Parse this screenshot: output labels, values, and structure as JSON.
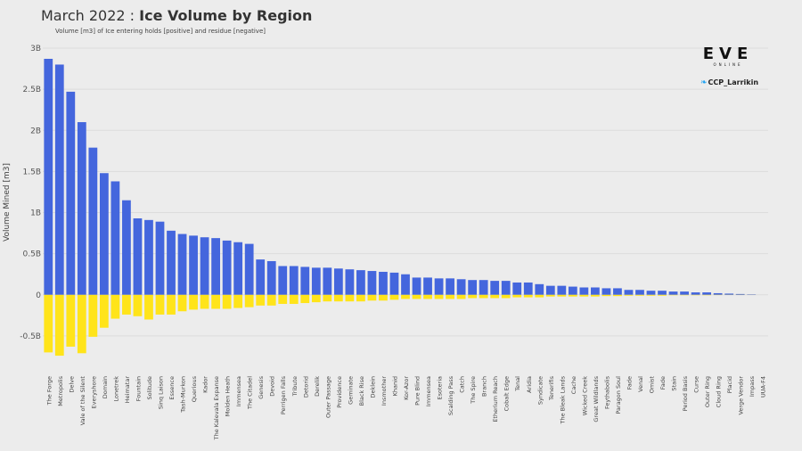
{
  "chart_data": {
    "type": "bar",
    "title_prefix": "March 2022 : ",
    "title_bold": "Ice Volume by Region",
    "subtitle": "Volume [m3] of Ice entering holds [positive] and residue [negative]",
    "xlabel": "",
    "ylabel": "Volume Mined [m3]",
    "ylim": [
      -750000000.0,
      3000000000.0
    ],
    "yticks": [
      3000000000.0,
      2500000000.0,
      2000000000.0,
      1500000000.0,
      1000000000.0,
      500000000.0,
      0,
      -500000000.0
    ],
    "ytick_labels": [
      "3B",
      "2.5B",
      "2B",
      "1.5B",
      "1B",
      "0.5B",
      "0",
      "-0.5B"
    ],
    "grid": true,
    "colors": {
      "positive": "#4466dd",
      "negative": "#ffe41a",
      "grid": "#dcdcdc",
      "background": "#ececec"
    },
    "categories": [
      "The Forge",
      "Metropolis",
      "Delve",
      "Vale of the Silent",
      "Everyshore",
      "Domain",
      "Lonetrek",
      "Heimatar",
      "Fountain",
      "Solitude",
      "Sinq Laison",
      "Essence",
      "Tash-Murkon",
      "Querious",
      "Kador",
      "The Kalevala Expanse",
      "Molden Heath",
      "Immensea",
      "The Citadel",
      "Genesis",
      "Devoid",
      "Perrigen Falls",
      "Tribute",
      "Detorid",
      "Derelik",
      "Outer Passage",
      "Providence",
      "Geminate",
      "Black Rise",
      "Deklein",
      "Insmother",
      "Khanid",
      "Kor-Azor",
      "Pure Blind",
      "Immensea",
      "Esoteria",
      "Scalding Pass",
      "Catch",
      "The Spire",
      "Branch",
      "Etherium Reach",
      "Cobalt Edge",
      "Tenal",
      "Aridia",
      "Syndicate",
      "Tenerifis",
      "The Bleak Lands",
      "Cache",
      "Wicked Creek",
      "Great Wildlands",
      "Feythabolis",
      "Paragon Soul",
      "Fade",
      "Venal",
      "Omist",
      "Fade",
      "Stain",
      "Period Basis",
      "Curse",
      "Outer Ring",
      "Cloud Ring",
      "Placid",
      "Verge Vendor",
      "Impass",
      "UUA-F4"
    ],
    "series": [
      {
        "name": "",
        "values": [
          2870000000.0,
          2800000000.0,
          2470000000.0,
          2100000000.0,
          1790000000.0,
          1480000000.0,
          1380000000.0,
          1150000000.0,
          930000000.0,
          910000000.0,
          890000000.0,
          780000000.0,
          740000000.0,
          720000000.0,
          700000000.0,
          690000000.0,
          660000000.0,
          640000000.0,
          620000000.0,
          430000000.0,
          410000000.0,
          350000000.0,
          350000000.0,
          340000000.0,
          330000000.0,
          330000000.0,
          320000000.0,
          310000000.0,
          300000000.0,
          290000000.0,
          280000000.0,
          270000000.0,
          250000000.0,
          210000000.0,
          210000000.0,
          200000000.0,
          200000000.0,
          190000000.0,
          180000000.0,
          180000000.0,
          170000000.0,
          170000000.0,
          150000000.0,
          150000000.0,
          130000000.0,
          110000000.0,
          110000000.0,
          100000000.0,
          90000000.0,
          90000000.0,
          80000000.0,
          80000000.0,
          60000000.0,
          60000000.0,
          50000000.0,
          50000000.0,
          40000000.0,
          40000000.0,
          30000000.0,
          30000000.0,
          20000000.0,
          15000000.0,
          10000000.0,
          5000000.0,
          0.0
        ]
      },
      {
        "name": "",
        "values": [
          -700000000.0,
          -740000000.0,
          -630000000.0,
          -710000000.0,
          -510000000.0,
          -400000000.0,
          -290000000.0,
          -240000000.0,
          -260000000.0,
          -300000000.0,
          -240000000.0,
          -240000000.0,
          -200000000.0,
          -180000000.0,
          -170000000.0,
          -170000000.0,
          -170000000.0,
          -160000000.0,
          -150000000.0,
          -130000000.0,
          -130000000.0,
          -110000000.0,
          -110000000.0,
          -100000000.0,
          -90000000.0,
          -80000000.0,
          -80000000.0,
          -80000000.0,
          -80000000.0,
          -70000000.0,
          -70000000.0,
          -60000000.0,
          -50000000.0,
          -50000000.0,
          -50000000.0,
          -50000000.0,
          -50000000.0,
          -50000000.0,
          -40000000.0,
          -40000000.0,
          -40000000.0,
          -40000000.0,
          -30000000.0,
          -30000000.0,
          -30000000.0,
          -20000000.0,
          -20000000.0,
          -20000000.0,
          -20000000.0,
          -20000000.0,
          -15000000.0,
          -15000000.0,
          -10000000.0,
          -10000000.0,
          -10000000.0,
          -10000000.0,
          -5000000.0,
          -5000000.0,
          -5000000.0,
          -5000000.0,
          -3000000.0,
          -2000000.0,
          -2000000.0,
          -1000000.0,
          0.0
        ]
      }
    ]
  },
  "branding": {
    "logo_text": "EVE",
    "logo_subtext": "ONLINE",
    "icon": "twitter-bird-icon",
    "handle": "CCP_Larrikin"
  }
}
